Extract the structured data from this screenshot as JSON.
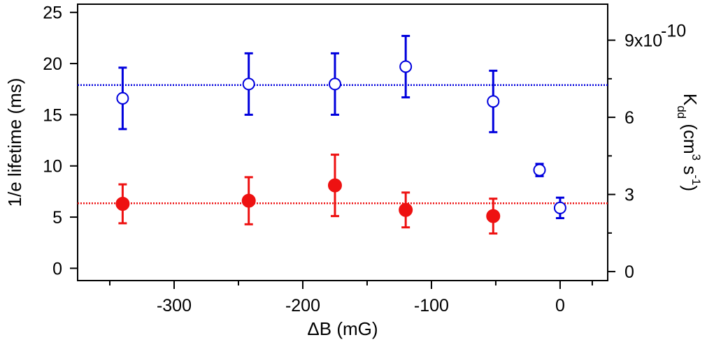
{
  "chart_data": {
    "type": "scatter",
    "title": "",
    "xlabel": "ΔB (mG)",
    "ylabel": "1/e lifetime (ms)",
    "y2label_parts": {
      "k": "K",
      "dd": "dd",
      "open": " (cm",
      "three": "3",
      "mid": " s",
      "minus_one": "-1",
      "close": ")"
    },
    "xlim": [
      -375,
      37
    ],
    "ylim": [
      -1.2,
      25.8
    ],
    "y2lim": [
      -0.35,
      10.4
    ],
    "x_ticks": [
      -300,
      -200,
      -100,
      0
    ],
    "x_tick_labels": [
      "-300",
      "-200",
      "-100",
      "0"
    ],
    "x_minor_ticks": [
      -350,
      -250,
      -150,
      -50,
      25
    ],
    "y_ticks": [
      0,
      5,
      10,
      15,
      20,
      25
    ],
    "y_tick_labels": [
      "0",
      "5",
      "10",
      "15",
      "20",
      "25"
    ],
    "y2_ticks": [
      0,
      3,
      6,
      9
    ],
    "y2_tick_labels": [
      "0",
      "3",
      "6",
      "9x10"
    ],
    "y2_exponent": "-10",
    "series": [
      {
        "name": "blue open circles",
        "color": "#0000dd",
        "marker": "open-circle",
        "points": [
          {
            "x": -340,
            "y": 16.6,
            "err": 3.0
          },
          {
            "x": -242,
            "y": 18.0,
            "err": 3.0
          },
          {
            "x": -175,
            "y": 18.0,
            "err": 3.0
          },
          {
            "x": -120,
            "y": 19.7,
            "err": 3.0
          },
          {
            "x": -52,
            "y": 16.3,
            "err": 3.0
          },
          {
            "x": -16,
            "y": 9.6,
            "err": 0.6
          },
          {
            "x": 0,
            "y": 5.9,
            "err": 1.0
          }
        ],
        "reference_line": {
          "y": 17.9
        }
      },
      {
        "name": "red filled circles",
        "color": "#ee1111",
        "marker": "filled-circle",
        "points": [
          {
            "x": -340,
            "y": 6.3,
            "err": 1.9
          },
          {
            "x": -242,
            "y": 6.6,
            "err": 2.3
          },
          {
            "x": -175,
            "y": 8.1,
            "err": 3.0
          },
          {
            "x": -120,
            "y": 5.7,
            "err": 1.7
          },
          {
            "x": -52,
            "y": 5.1,
            "err": 1.7
          }
        ],
        "reference_line": {
          "y": 6.35
        }
      }
    ]
  }
}
